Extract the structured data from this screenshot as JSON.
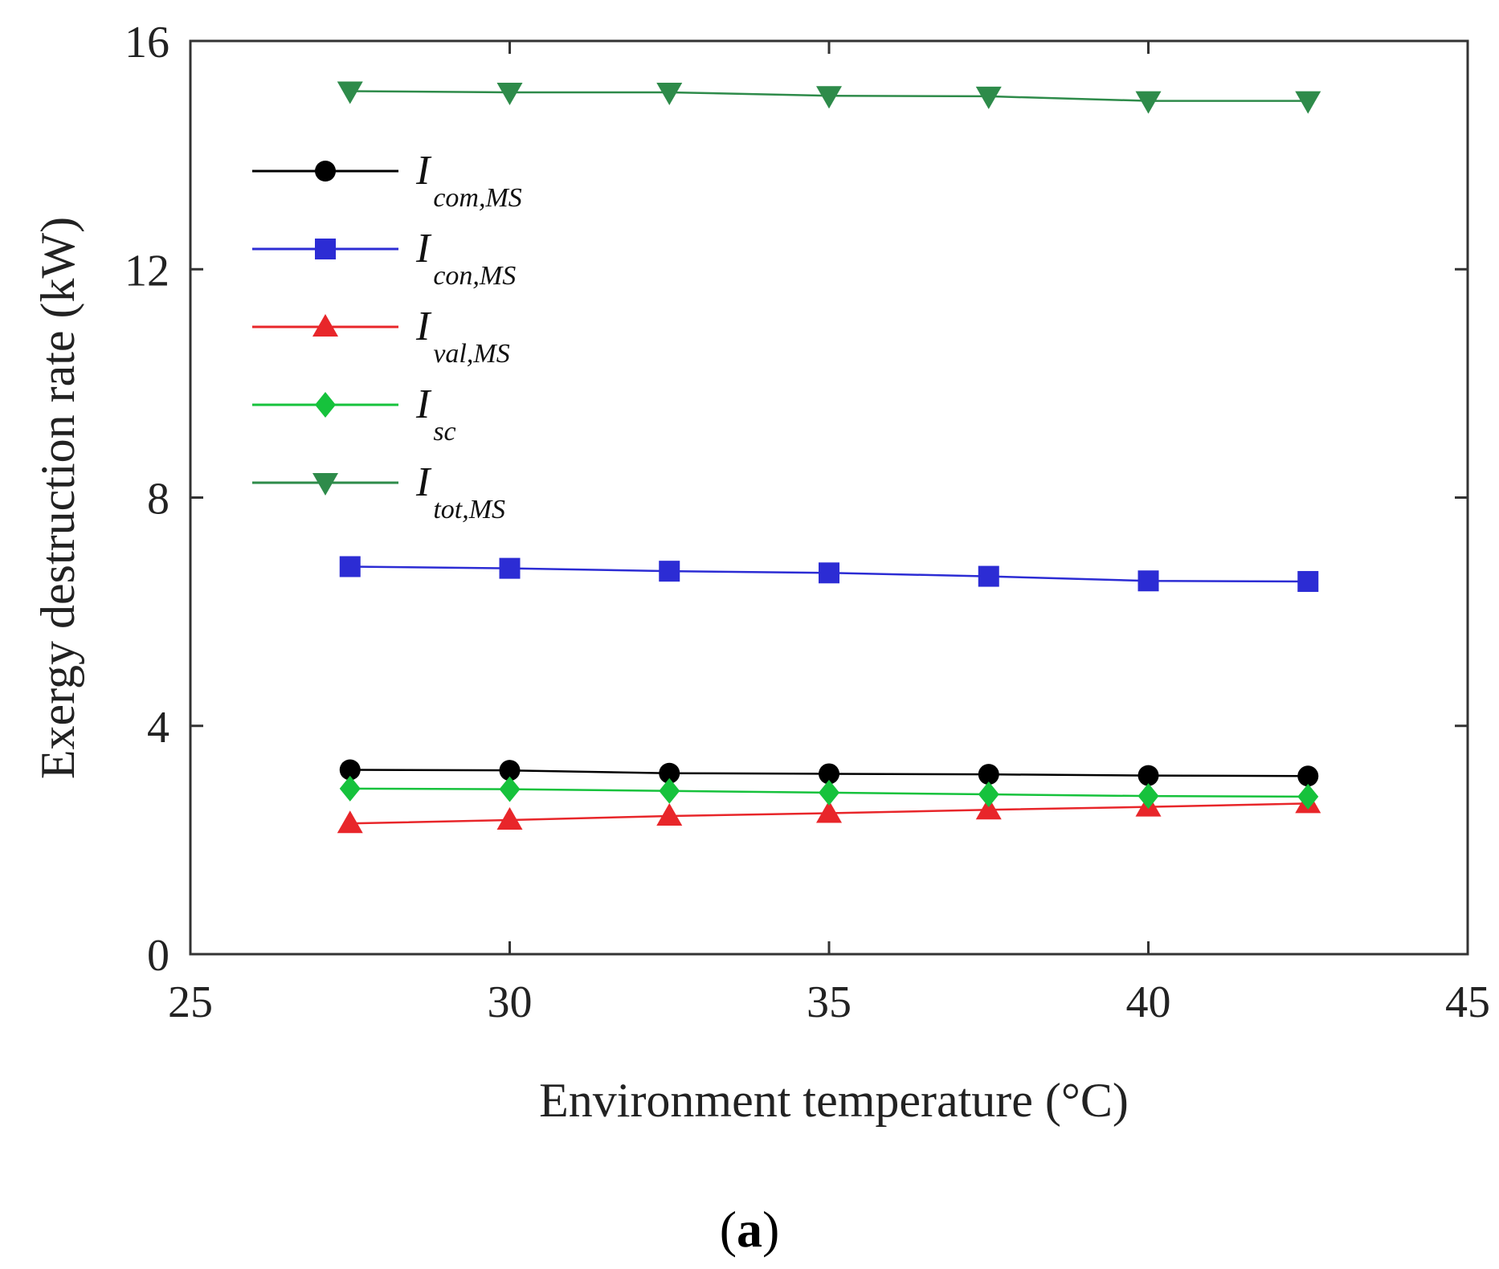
{
  "chart_data": {
    "type": "line",
    "title": "",
    "xlabel": "Environment temperature (°C)",
    "ylabel": "Exergy destruction rate (kW)",
    "xlim": [
      25,
      45
    ],
    "ylim": [
      0,
      16
    ],
    "xticks": [
      25,
      30,
      35,
      40,
      45
    ],
    "yticks": [
      0,
      4,
      8,
      12,
      16
    ],
    "xtick_labels": [
      "25",
      "30",
      "35",
      "40",
      "45"
    ],
    "ytick_labels": [
      "0",
      "4",
      "8",
      "12",
      "16"
    ],
    "grid": false,
    "legend_position": "upper-left",
    "x": [
      27.5,
      30,
      32.5,
      35,
      37.5,
      40,
      42.5
    ],
    "series": [
      {
        "name": "I",
        "subscript": "com,MS",
        "color": "#000000",
        "marker": "circle",
        "values": [
          3.23,
          3.22,
          3.17,
          3.16,
          3.15,
          3.13,
          3.12
        ]
      },
      {
        "name": "I",
        "subscript": "con,MS",
        "color": "#2c2cd4",
        "marker": "square",
        "values": [
          6.79,
          6.76,
          6.71,
          6.68,
          6.62,
          6.54,
          6.53
        ]
      },
      {
        "name": "I",
        "subscript": "val,MS",
        "color": "#e8262a",
        "marker": "triangle-up",
        "values": [
          2.29,
          2.35,
          2.42,
          2.47,
          2.53,
          2.58,
          2.64
        ]
      },
      {
        "name": "I",
        "subscript": "sc",
        "color": "#16c23c",
        "marker": "diamond",
        "values": [
          2.9,
          2.89,
          2.86,
          2.83,
          2.8,
          2.77,
          2.76
        ]
      },
      {
        "name": "I",
        "subscript": "tot,MS",
        "color": "#2e8b4a",
        "marker": "triangle-down",
        "values": [
          15.12,
          15.1,
          15.1,
          15.04,
          15.03,
          14.95,
          14.95
        ]
      }
    ]
  },
  "caption": {
    "open": "(",
    "letter": "a",
    "close": ")"
  }
}
